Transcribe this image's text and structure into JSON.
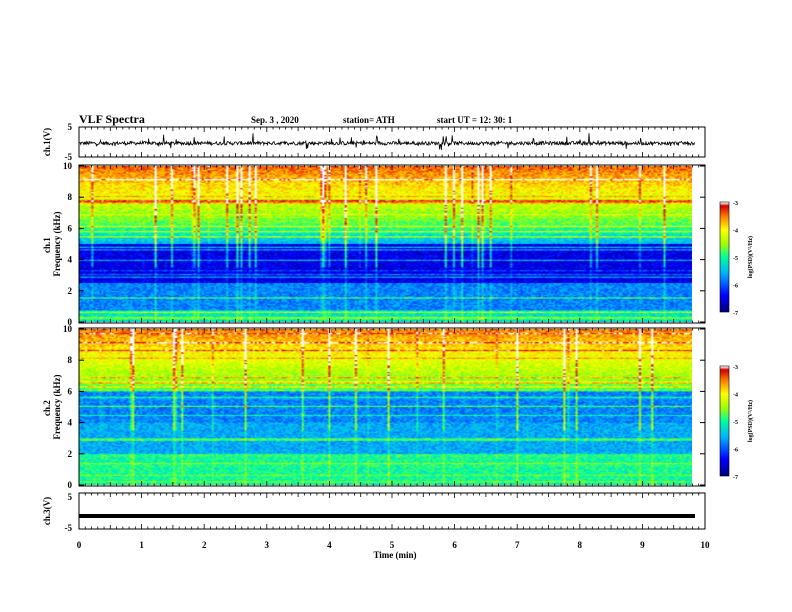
{
  "header": {
    "title": "VLF Spectra",
    "date": "Sep. 3  , 2020",
    "station": "station= ATH",
    "start": "start  UT  =   12: 30: 1"
  },
  "chart_data": [
    {
      "type": "line",
      "panel": "top-waveform",
      "ylabel": "ch.1(V)",
      "ylim": [
        -5,
        5
      ],
      "yticks": [
        "5",
        "-5"
      ],
      "description_of_series": "noisy waveform around -0.4 V with spikes up to about +1.5 / -2.5 V"
    },
    {
      "type": "heatmap",
      "panel": "spectrogram-ch1",
      "ylabel": "ch.1  Frequency  (kHz)",
      "ylim": [
        0,
        10
      ],
      "yticks": [
        "0",
        "2",
        "4",
        "6",
        "8",
        "10"
      ],
      "colorbar": {
        "label": "log(PSD)(V²/Hz)",
        "range": [
          -7,
          -3
        ],
        "ticks": [
          "-3",
          "-4",
          "-5",
          "-6",
          "-7"
        ]
      }
    },
    {
      "type": "heatmap",
      "panel": "spectrogram-ch2",
      "ylabel": "ch.2  Frequency  (kHz)",
      "ylim": [
        0,
        10
      ],
      "yticks": [
        "0",
        "2",
        "4",
        "6",
        "8",
        "10"
      ],
      "colorbar": {
        "label": "log(PSD)(V²/Hz)",
        "range": [
          -7,
          -3
        ],
        "ticks": [
          "-3",
          "-4",
          "-5",
          "-6",
          "-7"
        ]
      }
    },
    {
      "type": "line",
      "panel": "bottom-waveform",
      "ylabel": "ch.3(V)",
      "ylim": [
        -5,
        5
      ],
      "yticks": [
        "5",
        "-5"
      ],
      "constant_value": -1.4
    }
  ],
  "xaxis": {
    "label": "Time  (min)",
    "range": [
      0,
      10
    ],
    "ticks": [
      "0",
      "1",
      "2",
      "3",
      "4",
      "5",
      "6",
      "7",
      "8",
      "9",
      "10"
    ],
    "data_end": 9.84
  },
  "colors": {
    "background": "#ffffff",
    "line": "#000000",
    "colormap": [
      "#00007f",
      "#0000ff",
      "#00b0ff",
      "#00ffa0",
      "#a0ff00",
      "#ffff00",
      "#ff8000",
      "#d00000",
      "#ffffff"
    ]
  }
}
